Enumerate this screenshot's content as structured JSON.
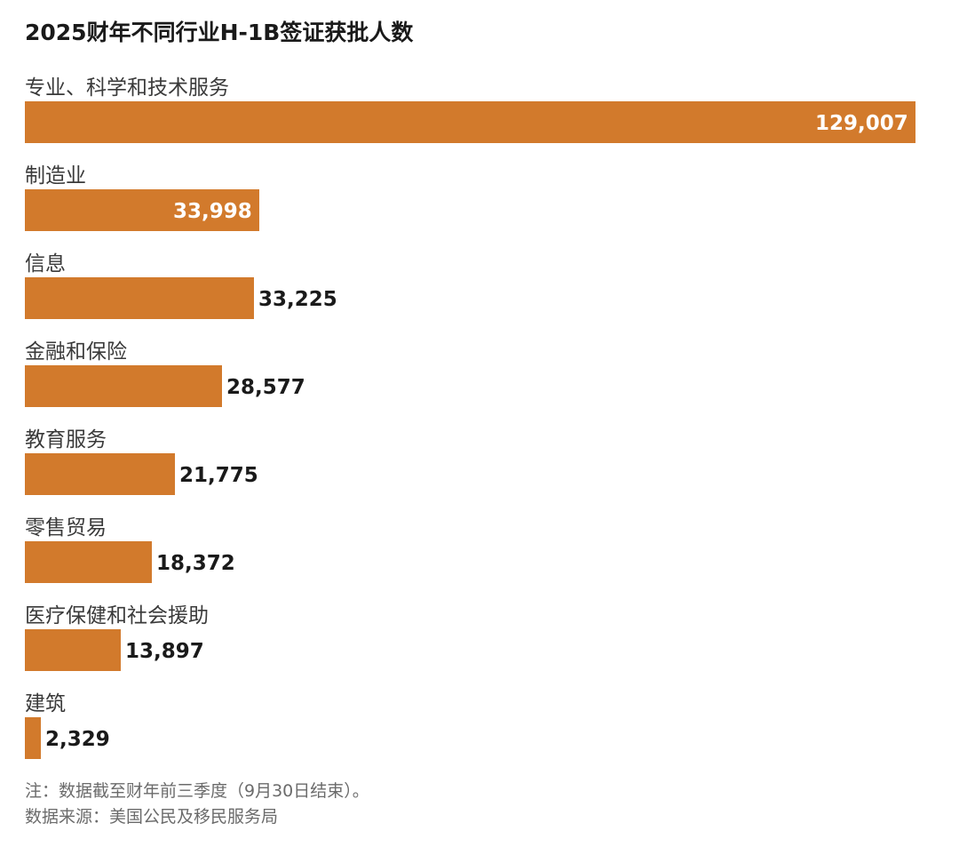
{
  "chart_data": {
    "type": "bar",
    "orientation": "horizontal",
    "title": "2025财年不同行业H-1B签证获批人数",
    "categories": [
      "专业、科学和技术服务",
      "制造业",
      "信息",
      "金融和保险",
      "教育服务",
      "零售贸易",
      "医疗保健和社会援助",
      "建筑"
    ],
    "values": [
      129007,
      33998,
      33225,
      28577,
      21775,
      18372,
      13897,
      2329
    ],
    "value_labels": [
      "129,007",
      "33,998",
      "33,225",
      "28,577",
      "21,775",
      "18,372",
      "13,897",
      "2,329"
    ],
    "xlim": [
      0,
      129007
    ],
    "bar_color": "#d27a2c",
    "grid": false,
    "xlabel": "",
    "ylabel": ""
  },
  "footer": {
    "note": "注：数据截至财年前三季度（9月30日结束）。",
    "source": "数据来源：美国公民及移民服务局"
  }
}
